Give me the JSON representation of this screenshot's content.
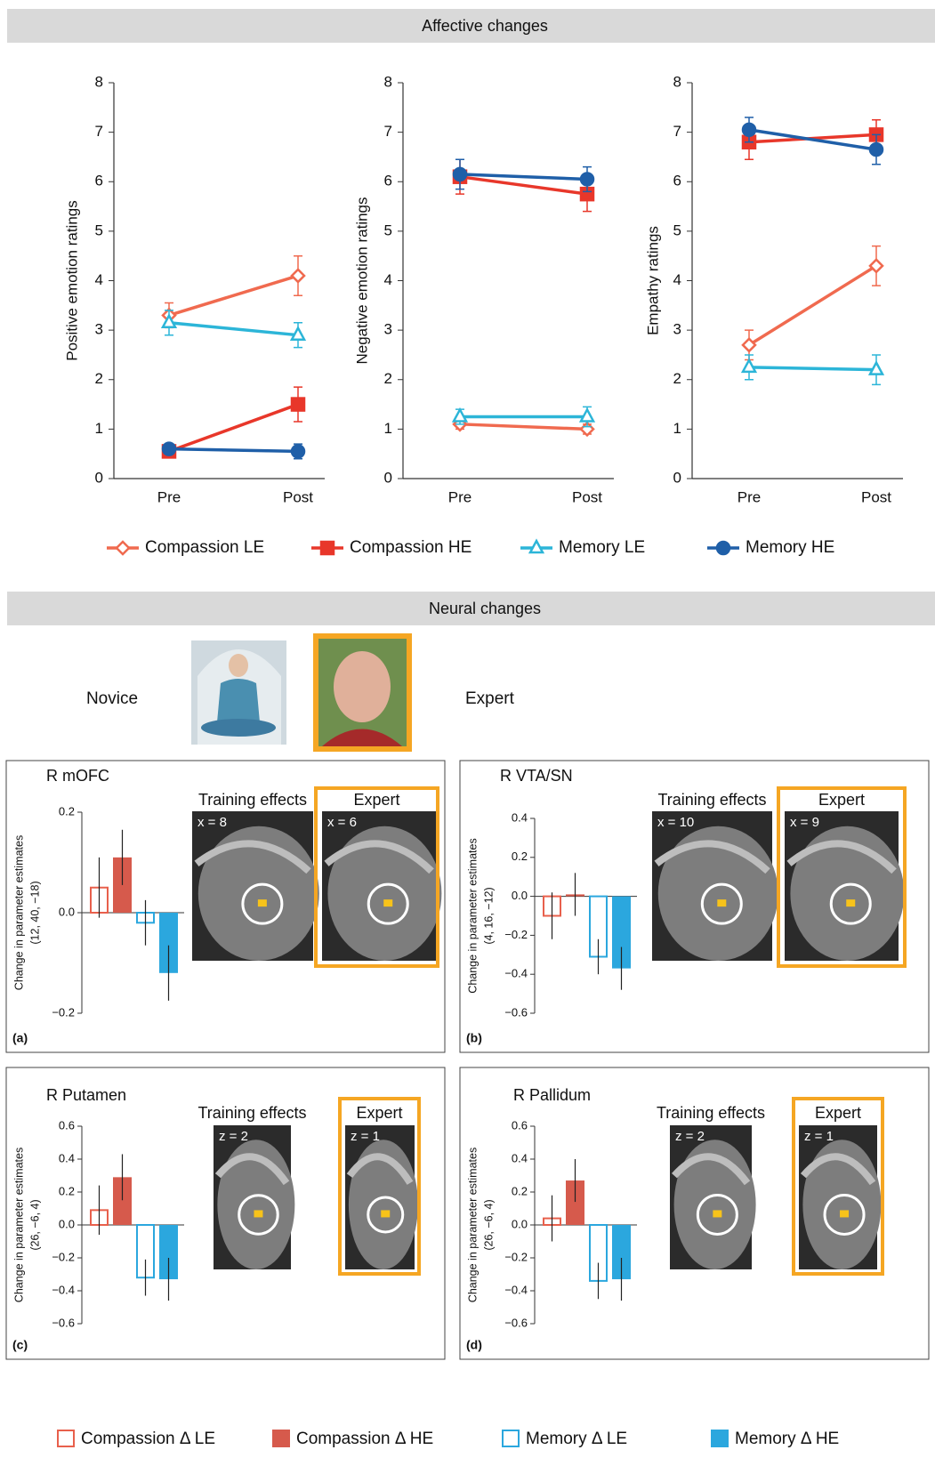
{
  "sections": [
    "Affective changes",
    "Neural changes"
  ],
  "groups": {
    "novice": "Novice",
    "expert": "Expert"
  },
  "chart_data": [
    {
      "type": "line",
      "ylabel": "Positive emotion ratings",
      "categories": [
        "Pre",
        "Post"
      ],
      "ylim": [
        0,
        8
      ],
      "yticks": [
        0,
        1,
        2,
        3,
        4,
        5,
        6,
        7,
        8
      ],
      "series": [
        {
          "name": "Compassion LE",
          "color": "#f06a4f",
          "marker": "diamond",
          "filled": false,
          "values": [
            3.3,
            4.1
          ],
          "errors": [
            0.25,
            0.4
          ]
        },
        {
          "name": "Compassion HE",
          "color": "#e8372a",
          "marker": "square",
          "filled": true,
          "values": [
            0.55,
            1.5
          ],
          "errors": [
            0.1,
            0.35
          ]
        },
        {
          "name": "Memory LE",
          "color": "#2cb5d8",
          "marker": "triangle",
          "filled": false,
          "values": [
            3.15,
            2.9
          ],
          "errors": [
            0.25,
            0.25
          ]
        },
        {
          "name": "Memory HE",
          "color": "#1f5fa8",
          "marker": "circle",
          "filled": true,
          "values": [
            0.6,
            0.55
          ],
          "errors": [
            0.1,
            0.15
          ]
        }
      ]
    },
    {
      "type": "line",
      "ylabel": "Negative emotion ratings",
      "categories": [
        "Pre",
        "Post"
      ],
      "ylim": [
        0,
        8
      ],
      "yticks": [
        0,
        1,
        2,
        3,
        4,
        5,
        6,
        7,
        8
      ],
      "series": [
        {
          "color": "#f06a4f",
          "marker": "diamond",
          "filled": false,
          "values": [
            1.1,
            1.0
          ],
          "errors": [
            0.1,
            0.1
          ]
        },
        {
          "color": "#e8372a",
          "marker": "square",
          "filled": true,
          "values": [
            6.1,
            5.75
          ],
          "errors": [
            0.35,
            0.35
          ]
        },
        {
          "color": "#2cb5d8",
          "marker": "triangle",
          "filled": false,
          "values": [
            1.25,
            1.25
          ],
          "errors": [
            0.15,
            0.2
          ]
        },
        {
          "color": "#1f5fa8",
          "marker": "circle",
          "filled": true,
          "values": [
            6.15,
            6.05
          ],
          "errors": [
            0.3,
            0.25
          ]
        }
      ]
    },
    {
      "type": "line",
      "ylabel": "Empathy ratings",
      "categories": [
        "Pre",
        "Post"
      ],
      "ylim": [
        0,
        8
      ],
      "yticks": [
        0,
        1,
        2,
        3,
        4,
        5,
        6,
        7,
        8
      ],
      "series": [
        {
          "color": "#f06a4f",
          "marker": "diamond",
          "filled": false,
          "values": [
            2.7,
            4.3
          ],
          "errors": [
            0.3,
            0.4
          ]
        },
        {
          "color": "#e8372a",
          "marker": "square",
          "filled": true,
          "values": [
            6.8,
            6.95
          ],
          "errors": [
            0.35,
            0.3
          ]
        },
        {
          "color": "#2cb5d8",
          "marker": "triangle",
          "filled": false,
          "values": [
            2.25,
            2.2
          ],
          "errors": [
            0.25,
            0.3
          ]
        },
        {
          "color": "#1f5fa8",
          "marker": "circle",
          "filled": true,
          "values": [
            7.05,
            6.65
          ],
          "errors": [
            0.25,
            0.3
          ]
        }
      ]
    },
    {
      "type": "bar",
      "title": "R mOFC",
      "panel": "(a)",
      "ylabel": [
        "Change in parameter estimates",
        "(12, 40, −18)"
      ],
      "ylim": [
        -0.2,
        0.2
      ],
      "yticks": [
        {
          "value": -0.2,
          "label": "−0.2"
        },
        {
          "value": 0,
          "label": "0.0"
        },
        0.2
      ],
      "series": [
        {
          "name": "Compassion Δ LE",
          "color": "#e8604c",
          "filled": false,
          "values": [
            0.05
          ],
          "errors": [
            0.06
          ]
        },
        {
          "name": "Compassion Δ HE",
          "color": "#d65a4c",
          "filled": true,
          "values": [
            0.11
          ],
          "errors": [
            0.055
          ]
        },
        {
          "name": "Memory Δ LE",
          "color": "#2ba7de",
          "filled": false,
          "values": [
            -0.02
          ],
          "errors": [
            0.045
          ]
        },
        {
          "name": "Memory Δ HE",
          "color": "#2ba7de",
          "filled": true,
          "values": [
            -0.12
          ],
          "errors": [
            0.055
          ]
        }
      ],
      "images": [
        {
          "title": "Training effects",
          "coord": "x = 8"
        },
        {
          "title": "Expert",
          "coord": "x = 6"
        }
      ]
    },
    {
      "type": "bar",
      "title": "R VTA/SN",
      "panel": "(b)",
      "ylabel": [
        "Change in parameter estimates",
        "(4, 16, −12)"
      ],
      "ylim": [
        -0.6,
        0.4
      ],
      "yticks": [
        {
          "value": -0.6,
          "label": "−0.6"
        },
        {
          "value": -0.4,
          "label": "−0.4"
        },
        {
          "value": -0.2,
          "label": "−0.2"
        },
        {
          "value": 0,
          "label": "0.0"
        },
        0.2,
        0.4
      ],
      "series": [
        {
          "color": "#e8604c",
          "filled": false,
          "values": [
            -0.1
          ],
          "errors": [
            0.12
          ]
        },
        {
          "color": "#d65a4c",
          "filled": true,
          "values": [
            0.01
          ],
          "errors": [
            0.11
          ]
        },
        {
          "color": "#2ba7de",
          "filled": false,
          "values": [
            -0.31
          ],
          "errors": [
            0.09
          ]
        },
        {
          "color": "#2ba7de",
          "filled": true,
          "values": [
            -0.37
          ],
          "errors": [
            0.11
          ]
        }
      ],
      "images": [
        {
          "title": "Training effects",
          "coord": "x = 10"
        },
        {
          "title": "Expert",
          "coord": "x = 9"
        }
      ]
    },
    {
      "type": "bar",
      "title": "R Putamen",
      "panel": "(c)",
      "ylabel": [
        "Change in parameter estimates",
        "(26, −6, 4)"
      ],
      "ylim": [
        -0.6,
        0.6
      ],
      "yticks": [
        {
          "value": -0.6,
          "label": "−0.6"
        },
        {
          "value": -0.4,
          "label": "−0.4"
        },
        {
          "value": -0.2,
          "label": "−0.2"
        },
        {
          "value": 0,
          "label": "0.0"
        },
        0.2,
        0.4,
        0.6
      ],
      "series": [
        {
          "color": "#e8604c",
          "filled": false,
          "values": [
            0.09
          ],
          "errors": [
            0.15
          ]
        },
        {
          "color": "#d65a4c",
          "filled": true,
          "values": [
            0.29
          ],
          "errors": [
            0.14
          ]
        },
        {
          "color": "#2ba7de",
          "filled": false,
          "values": [
            -0.32
          ],
          "errors": [
            0.11
          ]
        },
        {
          "color": "#2ba7de",
          "filled": true,
          "values": [
            -0.33
          ],
          "errors": [
            0.13
          ]
        }
      ],
      "images": [
        {
          "title": "Training effects",
          "coord": "z = 2"
        },
        {
          "title": "Expert",
          "coord": "z = 1"
        }
      ]
    },
    {
      "type": "bar",
      "title": "R Pallidum",
      "panel": "(d)",
      "ylabel": [
        "Change in parameter estimates",
        "(26, −6, 4)"
      ],
      "ylim": [
        -0.6,
        0.6
      ],
      "yticks": [
        {
          "value": -0.6,
          "label": "−0.6"
        },
        {
          "value": -0.4,
          "label": "−0.4"
        },
        {
          "value": -0.2,
          "label": "−0.2"
        },
        {
          "value": 0,
          "label": "0.0"
        },
        0.2,
        0.4,
        0.6
      ],
      "series": [
        {
          "color": "#e8604c",
          "filled": false,
          "values": [
            0.04
          ],
          "errors": [
            0.14
          ]
        },
        {
          "color": "#d65a4c",
          "filled": true,
          "values": [
            0.27
          ],
          "errors": [
            0.13
          ]
        },
        {
          "color": "#2ba7de",
          "filled": false,
          "values": [
            -0.34
          ],
          "errors": [
            0.11
          ]
        },
        {
          "color": "#2ba7de",
          "filled": true,
          "values": [
            -0.33
          ],
          "errors": [
            0.13
          ]
        }
      ],
      "images": [
        {
          "title": "Training effects",
          "coord": "z = 2"
        },
        {
          "title": "Expert",
          "coord": "z = 1"
        }
      ]
    }
  ]
}
